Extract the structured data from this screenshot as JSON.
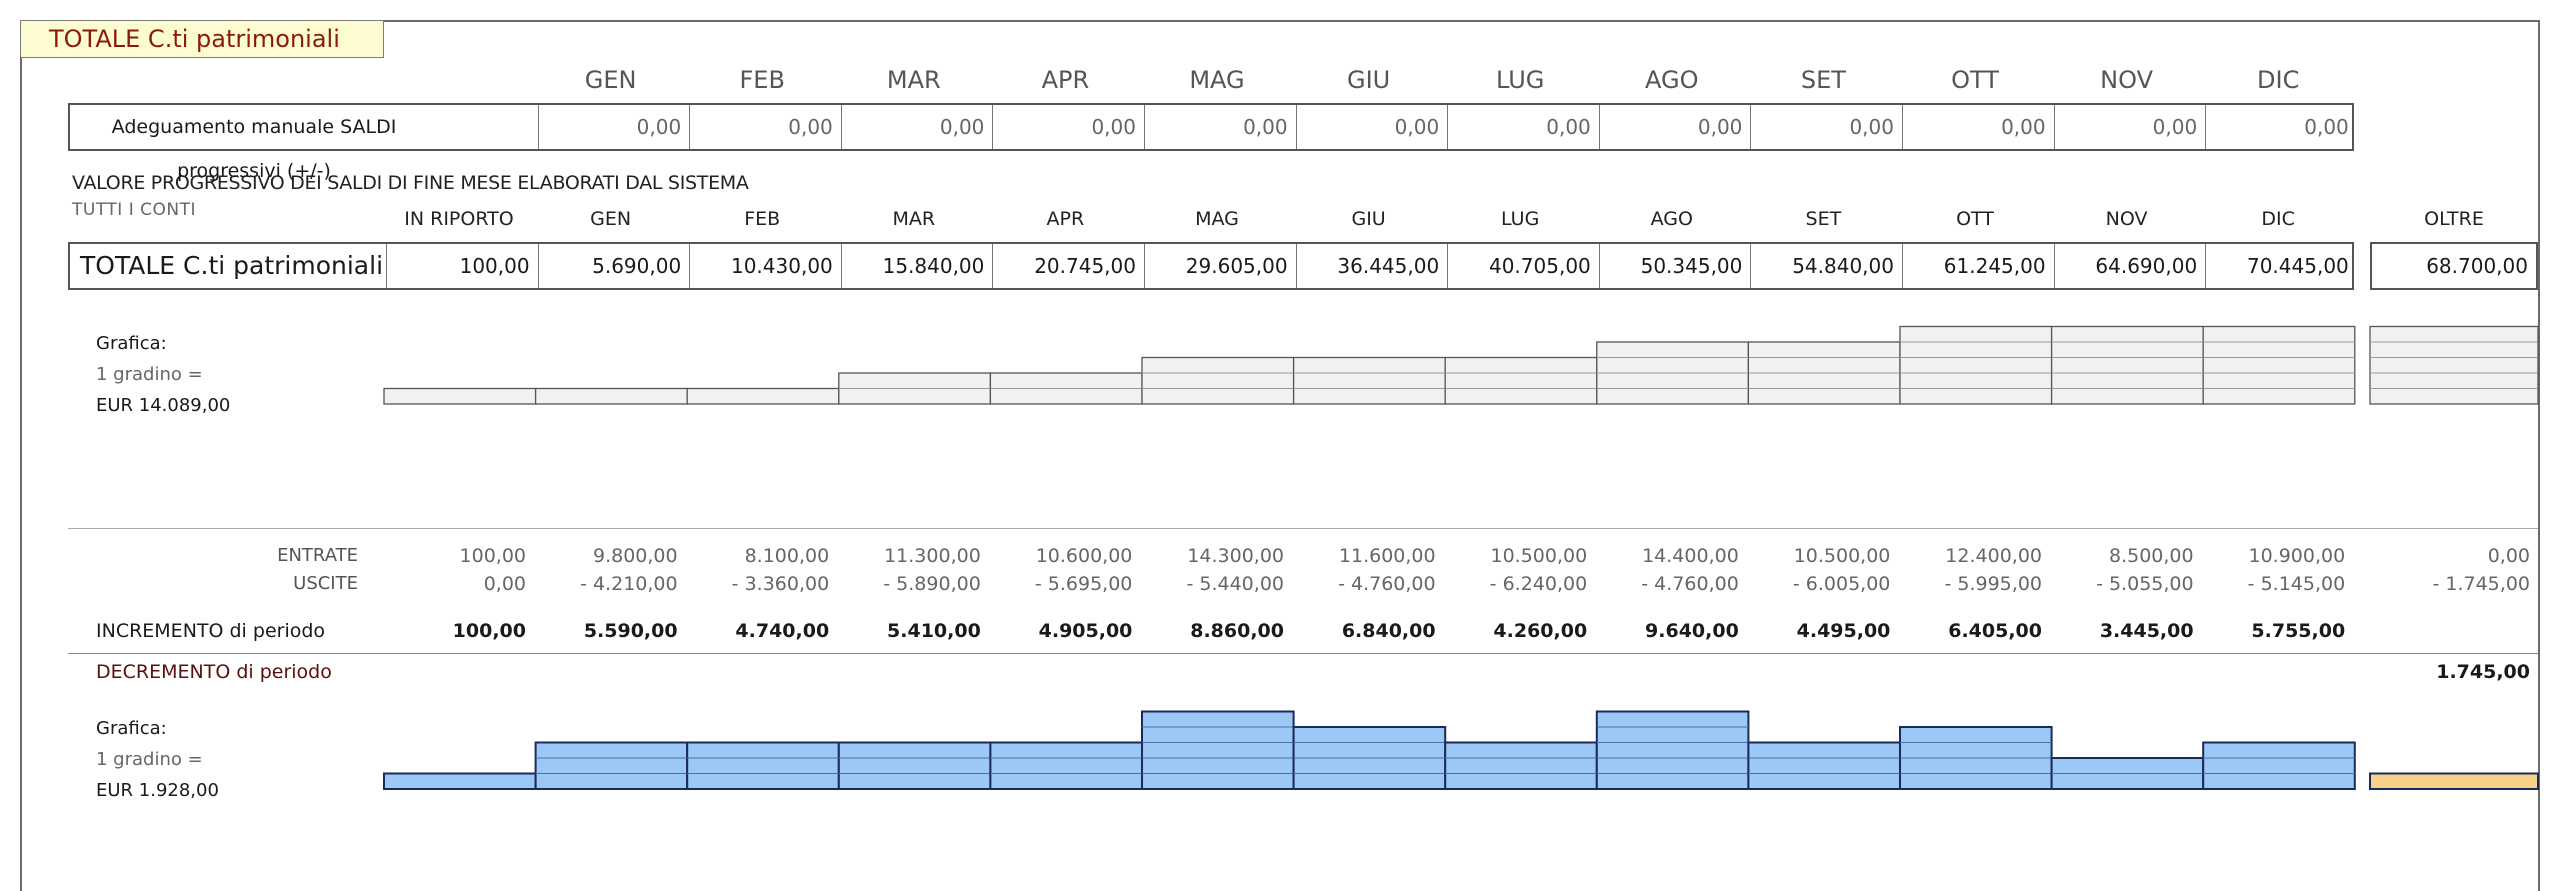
{
  "title": "TOTALE C.ti patrimoniali",
  "months": [
    "GEN",
    "FEB",
    "MAR",
    "APR",
    "MAG",
    "GIU",
    "LUG",
    "AGO",
    "SET",
    "OTT",
    "NOV",
    "DIC"
  ],
  "adjust": {
    "label": "Adeguamento manuale SALDI progressivi (+/-)",
    "values": [
      "0,00",
      "0,00",
      "0,00",
      "0,00",
      "0,00",
      "0,00",
      "0,00",
      "0,00",
      "0,00",
      "0,00",
      "0,00",
      "0,00"
    ]
  },
  "progressive": {
    "section_title": "VALORE PROGRESSIVO DEI SALDI DI FINE MESE ELABORATI DAL SISTEMA",
    "subtitle": "TUTTI I CONTI",
    "col_headers": [
      "IN RIPORTO",
      "GEN",
      "FEB",
      "MAR",
      "APR",
      "MAG",
      "GIU",
      "LUG",
      "AGO",
      "SET",
      "OTT",
      "NOV",
      "DIC"
    ],
    "oltre_header": "OLTRE",
    "row_label": "TOTALE C.ti patrimoniali",
    "values": [
      "100,00",
      "5.690,00",
      "10.430,00",
      "15.840,00",
      "20.745,00",
      "29.605,00",
      "36.445,00",
      "40.705,00",
      "50.345,00",
      "54.840,00",
      "61.245,00",
      "64.690,00",
      "70.445,00"
    ],
    "oltre_value": "68.700,00"
  },
  "graph1": {
    "label": "Grafica:",
    "step_label": "1 gradino =",
    "step_value": "EUR 14.089,00",
    "steps": [
      1,
      1,
      1,
      2,
      2,
      3,
      3,
      3,
      4,
      4,
      5,
      5,
      5
    ],
    "oltre_steps": 5
  },
  "flows": {
    "entrate_label": "ENTRATE",
    "uscite_label": "USCITE",
    "entrate": [
      "100,00",
      "9.800,00",
      "8.100,00",
      "11.300,00",
      "10.600,00",
      "14.300,00",
      "11.600,00",
      "10.500,00",
      "14.400,00",
      "10.500,00",
      "12.400,00",
      "8.500,00",
      "10.900,00"
    ],
    "entrate_oltre": "0,00",
    "uscite": [
      "0,00",
      "- 4.210,00",
      "- 3.360,00",
      "- 5.890,00",
      "- 5.695,00",
      "- 5.440,00",
      "- 4.760,00",
      "- 6.240,00",
      "- 4.760,00",
      "- 6.005,00",
      "- 5.995,00",
      "- 5.055,00",
      "- 5.145,00"
    ],
    "uscite_oltre": "- 1.745,00",
    "incremento_label": "INCREMENTO di periodo",
    "incremento": [
      "100,00",
      "5.590,00",
      "4.740,00",
      "5.410,00",
      "4.905,00",
      "8.860,00",
      "6.840,00",
      "4.260,00",
      "9.640,00",
      "4.495,00",
      "6.405,00",
      "3.445,00",
      "5.755,00"
    ],
    "decremento_label": "DECREMENTO di periodo",
    "decremento_oltre": "1.745,00"
  },
  "graph2": {
    "label": "Grafica:",
    "step_label": "1 gradino =",
    "step_value": "EUR 1.928,00",
    "steps": [
      1,
      3,
      3,
      3,
      3,
      5,
      4,
      3,
      5,
      3,
      4,
      2,
      3
    ],
    "oltre_steps": 1,
    "bar_color": "#9cc8f5",
    "oltre_color": "#f7d08a"
  }
}
